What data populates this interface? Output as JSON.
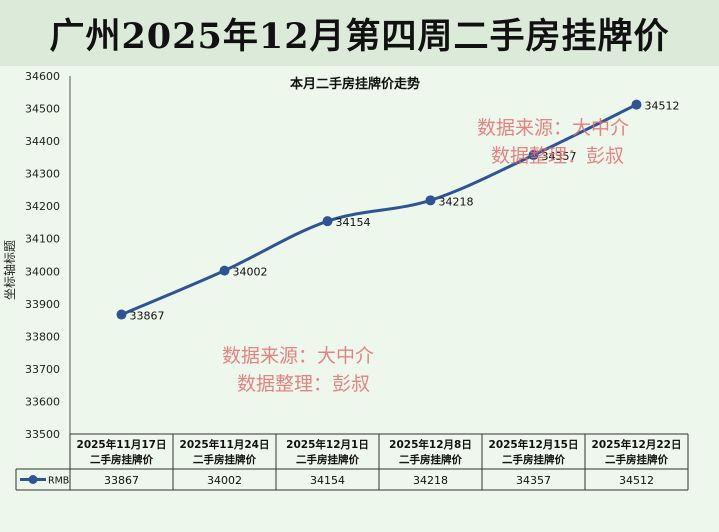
{
  "banner": {
    "title": "广州2025年12月第四周二手房挂牌价"
  },
  "watermark": {
    "line1": "数据来源：大中介",
    "line2": "数据整理：彭叔"
  },
  "colors": {
    "series": "#2f5496",
    "watermark": "#e07070",
    "grid": "#bfc9bd"
  },
  "chart_data": {
    "type": "line",
    "title": "本月二手房挂牌价走势",
    "ylabel": "坐标轴标题",
    "xlabel": "",
    "ylim": [
      33500,
      34600
    ],
    "yticks": [
      33500,
      33600,
      33700,
      33800,
      33900,
      34000,
      34100,
      34200,
      34300,
      34400,
      34500,
      34600
    ],
    "categories": [
      {
        "date": "2025年11月17日",
        "label": "二手房挂牌价"
      },
      {
        "date": "2025年11月24日",
        "label": "二手房挂牌价"
      },
      {
        "date": "2025年12月1日",
        "label": "二手房挂牌价"
      },
      {
        "date": "2025年12月8日",
        "label": "二手房挂牌价"
      },
      {
        "date": "2025年12月15日",
        "label": "二手房挂牌价"
      },
      {
        "date": "2025年12月22日",
        "label": "二手房挂牌价"
      }
    ],
    "series": [
      {
        "name": "RMB",
        "values": [
          33867,
          34002,
          34154,
          34218,
          34357,
          34512
        ]
      }
    ],
    "grid": false,
    "legend": "data-table"
  }
}
